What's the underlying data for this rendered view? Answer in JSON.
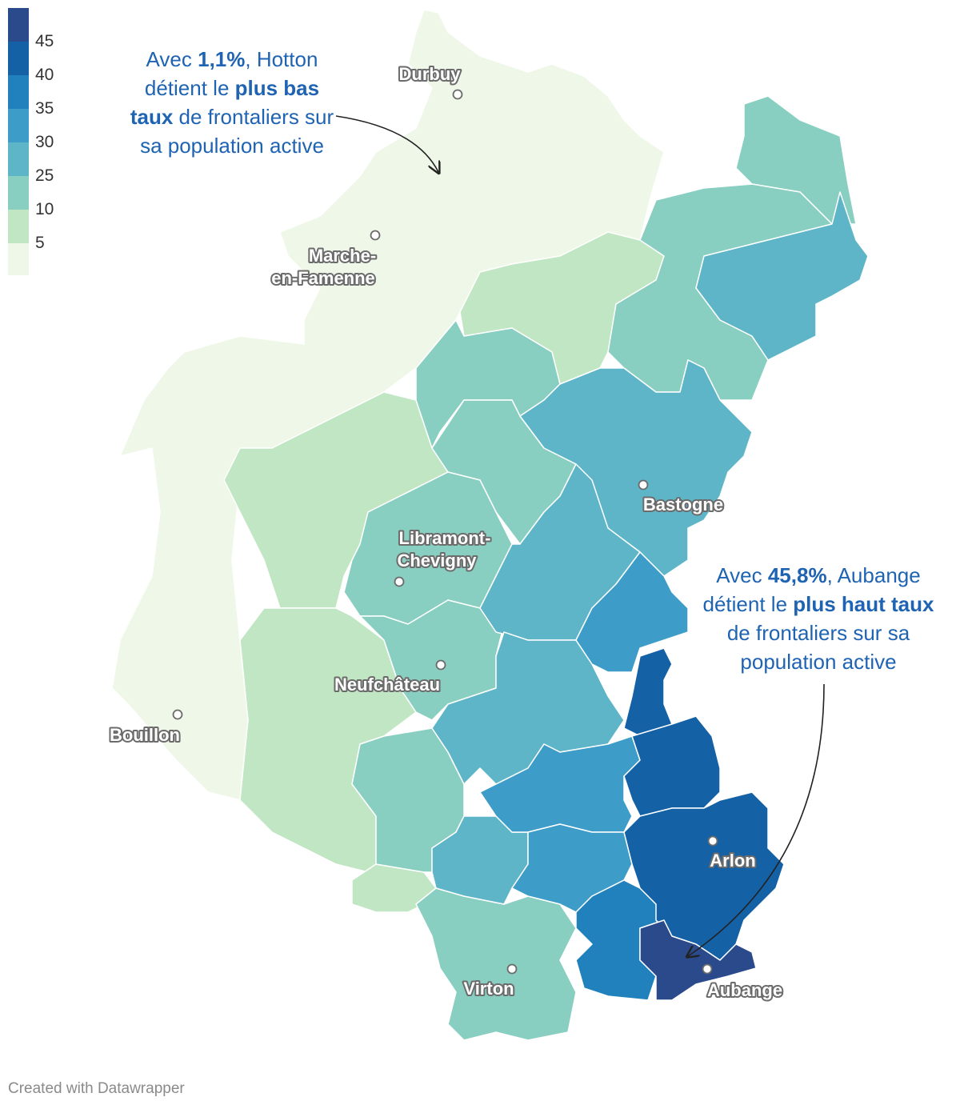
{
  "legend": {
    "colors": [
      "#2a4a8c",
      "#1561a6",
      "#2181bd",
      "#3d9cc8",
      "#5eb5c8",
      "#89cfc1",
      "#c1e6c3",
      "#eff8e8"
    ],
    "labels": [
      "45",
      "40",
      "35",
      "30",
      "25",
      "10",
      "5"
    ]
  },
  "cities": [
    {
      "id": "durbuy",
      "label": "Durbuy"
    },
    {
      "id": "marche",
      "label": "Marche-en-Famenne",
      "lines": [
        "Marche-",
        "en-Famenne"
      ]
    },
    {
      "id": "bastogne",
      "label": "Bastogne"
    },
    {
      "id": "libramont",
      "label": "Libramont-Chevigny",
      "lines": [
        "Libramont-",
        "Chevigny"
      ]
    },
    {
      "id": "neufchateau",
      "label": "Neufchâteau"
    },
    {
      "id": "bouillon",
      "label": "Bouillon"
    },
    {
      "id": "arlon",
      "label": "Arlon"
    },
    {
      "id": "virton",
      "label": "Virton"
    },
    {
      "id": "aubange",
      "label": "Aubange"
    }
  ],
  "annotations": {
    "hotton": {
      "p1": "Avec ",
      "v1": "1,1%",
      "p2": ", Hotton détient le ",
      "v2": "plus bas taux",
      "p3": " de frontaliers sur sa population active"
    },
    "aubange": {
      "p1": "Avec ",
      "v1": "45,8%",
      "p2": ", Aubange détient le ",
      "v2": "plus haut taux",
      "p3": " de frontaliers sur sa population active"
    }
  },
  "footer": "Created with Datawrapper"
}
